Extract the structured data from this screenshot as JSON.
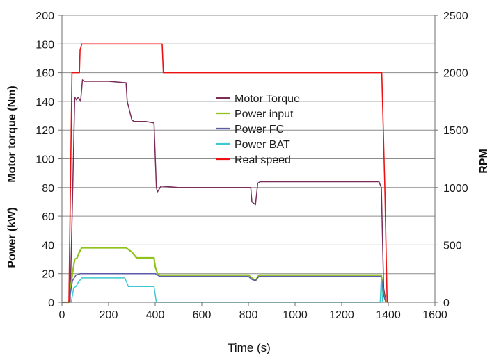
{
  "chart_data": {
    "type": "line",
    "xlabel": "Time (s)",
    "ylabel_left_top": "Motor torque (Nm)",
    "ylabel_left_bottom": "Power (kW)",
    "ylabel_right": "RPM",
    "xlim": [
      0,
      1600
    ],
    "ylim_left": [
      0,
      200
    ],
    "ylim_right": [
      0,
      2500
    ],
    "xticks": [
      0,
      200,
      400,
      600,
      800,
      1000,
      1200,
      1400,
      1600
    ],
    "yticks_left": [
      0,
      20,
      40,
      60,
      80,
      100,
      120,
      140,
      160,
      180,
      200
    ],
    "yticks_right": [
      0,
      500,
      1000,
      1500,
      2000,
      2500
    ],
    "grid": true,
    "legend_position": "center",
    "series": [
      {
        "name": "Motor Torque",
        "color": "#7b2d5a",
        "axis": "left",
        "x": [
          0,
          35,
          45,
          55,
          62,
          70,
          80,
          88,
          95,
          120,
          200,
          275,
          280,
          300,
          310,
          360,
          395,
          405,
          410,
          425,
          500,
          600,
          700,
          810,
          815,
          830,
          840,
          850,
          900,
          1000,
          1100,
          1200,
          1300,
          1360,
          1370,
          1380,
          1390
        ],
        "y": [
          0,
          0,
          70,
          143,
          141,
          143,
          140,
          155,
          154,
          154,
          154,
          153,
          140,
          127,
          126,
          126,
          125,
          80,
          77,
          81,
          80,
          80,
          80,
          80,
          70,
          68,
          83,
          84,
          84,
          84,
          84,
          84,
          84,
          84,
          80,
          10,
          0
        ]
      },
      {
        "name": "Power input",
        "color": "#8fc21b",
        "axis": "left",
        "x": [
          0,
          30,
          45,
          55,
          65,
          75,
          85,
          100,
          200,
          275,
          300,
          320,
          395,
          400,
          410,
          420,
          500,
          600,
          700,
          800,
          815,
          830,
          845,
          900,
          1000,
          1100,
          1200,
          1300,
          1360,
          1370,
          1380,
          1390
        ],
        "y": [
          0,
          0,
          20,
          30,
          31,
          35,
          38,
          38,
          38,
          38,
          35,
          31,
          31,
          25,
          20,
          19,
          19,
          19,
          19,
          19,
          17,
          15,
          19,
          19,
          19,
          19,
          19,
          19,
          19,
          19,
          5,
          0
        ],
        "width": 2.2
      },
      {
        "name": "Power FC",
        "color": "#5a5aa8",
        "axis": "left",
        "x": [
          0,
          30,
          45,
          60,
          80,
          100,
          200,
          300,
          400,
          420,
          500,
          600,
          700,
          800,
          815,
          830,
          845,
          900,
          1000,
          1100,
          1200,
          1300,
          1360,
          1370,
          1380,
          1390
        ],
        "y": [
          0,
          0,
          15,
          19,
          20,
          20,
          20,
          20,
          20,
          18,
          18,
          18,
          18,
          18,
          16,
          15,
          18,
          18,
          18,
          18,
          18,
          18,
          18,
          18,
          5,
          0
        ]
      },
      {
        "name": "Power BAT",
        "color": "#3ec8d0",
        "axis": "left",
        "x": [
          0,
          40,
          50,
          60,
          70,
          85,
          100,
          200,
          270,
          285,
          320,
          395,
          405,
          1365,
          1370,
          1375
        ],
        "y": [
          0,
          0,
          10,
          11,
          14,
          17,
          17,
          17,
          17,
          11,
          11,
          11,
          0,
          0,
          18,
          0
        ]
      },
      {
        "name": "Real speed",
        "color": "#ee1111",
        "axis": "right",
        "x": [
          0,
          30,
          43,
          45,
          75,
          78,
          85,
          90,
          100,
          200,
          300,
          400,
          430,
          435,
          500,
          600,
          700,
          800,
          900,
          1000,
          1100,
          1200,
          1300,
          1350,
          1372,
          1385,
          1395,
          1400
        ],
        "y": [
          0,
          0,
          2000,
          2000,
          2000,
          2200,
          2250,
          2250,
          2250,
          2250,
          2250,
          2250,
          2250,
          2000,
          2000,
          2000,
          2000,
          2000,
          2000,
          2000,
          2000,
          2000,
          2000,
          2000,
          2000,
          1000,
          0,
          0
        ],
        "width": 1.6
      }
    ]
  }
}
